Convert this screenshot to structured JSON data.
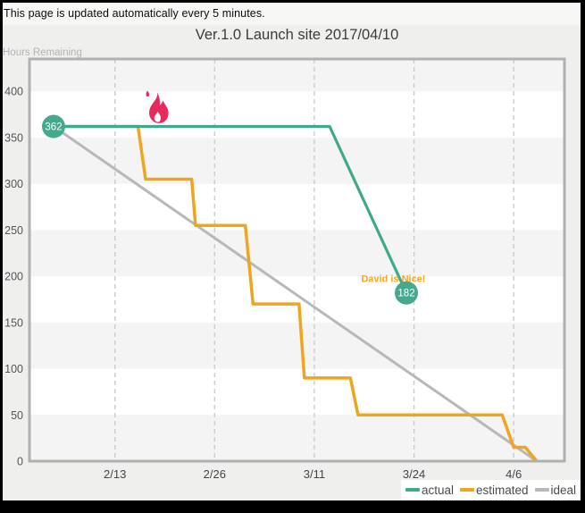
{
  "page": {
    "notice": "This page is updated automatically every 5 minutes.",
    "frame_color": "#000000",
    "background": "#efefee",
    "topbar_background": "#f7f7f6"
  },
  "chart_data": {
    "type": "line",
    "title": "Ver.1.0 Launch site 2017/04/10",
    "ylabel": "Hours Remaining",
    "xlabel": "",
    "ylim": [
      0,
      435
    ],
    "band_interval": 50,
    "band_colors": [
      "#f4f4f4",
      "#ffffff"
    ],
    "y_ticks": [
      0,
      50,
      100,
      150,
      200,
      250,
      300,
      350,
      400
    ],
    "x_ticks": [
      {
        "day": 8,
        "label": "2/13"
      },
      {
        "day": 21,
        "label": "2/26"
      },
      {
        "day": 34,
        "label": "3/11"
      },
      {
        "day": 47,
        "label": "3/24"
      },
      {
        "day": 60,
        "label": "4/6"
      }
    ],
    "grid": {
      "vertical": "dashed",
      "vertical_color": "#cccccc",
      "horizontal": "bands"
    },
    "series": [
      {
        "name": "ideal",
        "color": "#b8b8b8",
        "width": 3,
        "points": [
          {
            "day": 0,
            "value": 362
          },
          {
            "day": 63,
            "value": 0
          }
        ]
      },
      {
        "name": "estimated",
        "color": "#f0a51f",
        "width": 3.5,
        "points": [
          {
            "day": 0,
            "value": 362
          },
          {
            "day": 11,
            "value": 362
          },
          {
            "day": 12,
            "value": 305
          },
          {
            "day": 18,
            "value": 305
          },
          {
            "day": 18.5,
            "value": 255
          },
          {
            "day": 25,
            "value": 255
          },
          {
            "day": 26,
            "value": 170
          },
          {
            "day": 32,
            "value": 170
          },
          {
            "day": 32.7,
            "value": 90
          },
          {
            "day": 38.7,
            "value": 90
          },
          {
            "day": 39.7,
            "value": 50
          },
          {
            "day": 58.5,
            "value": 50
          },
          {
            "day": 60,
            "value": 15
          },
          {
            "day": 61.5,
            "value": 15
          },
          {
            "day": 63,
            "value": 0
          }
        ]
      },
      {
        "name": "actual",
        "color": "#3fa98b",
        "width": 3.2,
        "points": [
          {
            "day": 0,
            "value": 362
          },
          {
            "day": 36,
            "value": 362
          },
          {
            "day": 46,
            "value": 182
          }
        ]
      }
    ],
    "markers": [
      {
        "label": "362",
        "day": 0,
        "value": 362,
        "color": "#45a98d",
        "text_color": "#ffffff"
      },
      {
        "label": "182",
        "day": 46,
        "value": 182,
        "color": "#45a98d",
        "text_color": "#ffffff"
      }
    ],
    "annotations": [
      {
        "type": "text",
        "text": "David is Nice!",
        "day": 44.3,
        "value": 194,
        "color": "#f5a623"
      },
      {
        "type": "fire-icon",
        "day": 13.5,
        "value": 362,
        "color": "#e9295c"
      }
    ],
    "legend": {
      "position": "bottom-right",
      "items": [
        {
          "label": "actual",
          "color": "#3fa98b"
        },
        {
          "label": "estimated",
          "color": "#f0a51f"
        },
        {
          "label": "ideal",
          "color": "#b8b8b8"
        }
      ]
    }
  }
}
